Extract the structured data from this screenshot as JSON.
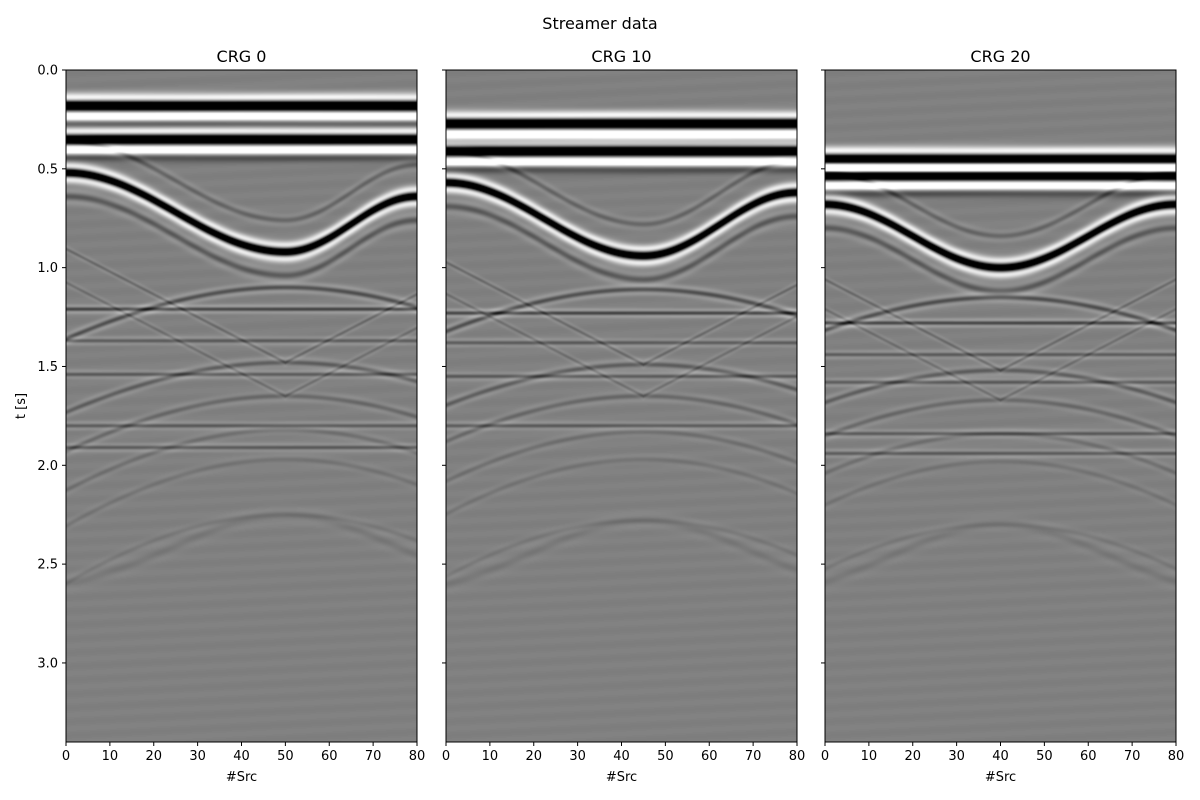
{
  "figure": {
    "title": "Streamer data"
  },
  "chart_data": [
    {
      "type": "heatmap",
      "title": "CRG 0",
      "xlabel": "#Src",
      "ylabel": "t [s]",
      "xlim": [
        0,
        80
      ],
      "ylim": [
        3.4,
        0.0
      ],
      "xticks": [
        0,
        10,
        20,
        30,
        40,
        50,
        60,
        70,
        80
      ],
      "yticks": [
        0.0,
        0.5,
        1.0,
        1.5,
        2.0,
        2.5,
        3.0
      ],
      "colormap": "gray",
      "events": {
        "flat_direct": [
          0.18,
          0.35
        ],
        "apex_src": 50,
        "apex_t": 0.92,
        "edge_t_left": 0.52,
        "edge_t_right": 0.64,
        "secondary_hyperbolas_apex_t": [
          1.1,
          1.48,
          1.65,
          1.82,
          1.97,
          2.25
        ],
        "flat_events": [
          1.21,
          1.37,
          1.54,
          1.8,
          1.91
        ]
      }
    },
    {
      "type": "heatmap",
      "title": "CRG 10",
      "xlabel": "#Src",
      "ylabel": "",
      "xlim": [
        0,
        80
      ],
      "ylim": [
        3.4,
        0.0
      ],
      "xticks": [
        0,
        10,
        20,
        30,
        40,
        50,
        60,
        70,
        80
      ],
      "yticks": [
        0.0,
        0.5,
        1.0,
        1.5,
        2.0,
        2.5,
        3.0
      ],
      "colormap": "gray",
      "events": {
        "flat_direct": [
          0.27,
          0.41
        ],
        "apex_src": 45,
        "apex_t": 0.94,
        "edge_t_left": 0.57,
        "edge_t_right": 0.62,
        "secondary_hyperbolas_apex_t": [
          1.11,
          1.49,
          1.65,
          1.83,
          1.97,
          2.28
        ],
        "flat_events": [
          1.23,
          1.38,
          1.55,
          1.8
        ]
      }
    },
    {
      "type": "heatmap",
      "title": "CRG 20",
      "xlabel": "#Src",
      "ylabel": "",
      "xlim": [
        0,
        80
      ],
      "ylim": [
        3.4,
        0.0
      ],
      "xticks": [
        0,
        10,
        20,
        30,
        40,
        50,
        60,
        70,
        80
      ],
      "yticks": [
        0.0,
        0.5,
        1.0,
        1.5,
        2.0,
        2.5,
        3.0
      ],
      "colormap": "gray",
      "events": {
        "flat_direct": [
          0.45,
          0.53
        ],
        "apex_src": 40,
        "apex_t": 1.0,
        "edge_t_left": 0.68,
        "edge_t_right": 0.68,
        "secondary_hyperbolas_apex_t": [
          1.15,
          1.52,
          1.67,
          1.84,
          1.98,
          2.3
        ],
        "flat_events": [
          1.28,
          1.44,
          1.58,
          1.84,
          1.94
        ]
      }
    }
  ]
}
